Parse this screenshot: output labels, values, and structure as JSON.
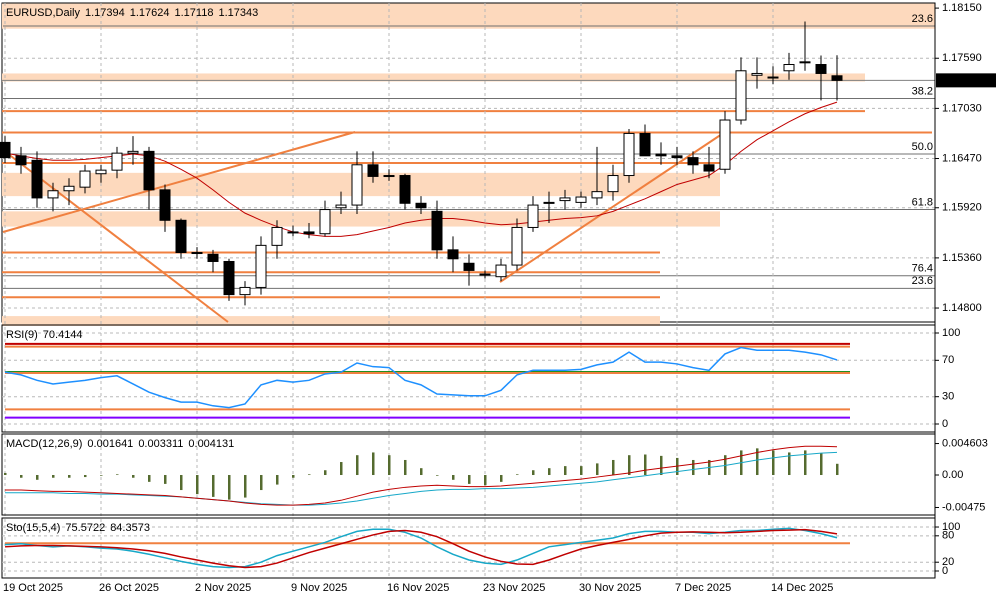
{
  "chart_data": [
    {
      "type": "candlestick",
      "title": "EURUSD,Daily",
      "categories": [
        "19 Oct 2025",
        null,
        null,
        null,
        null,
        null,
        "26 Oct 2025",
        null,
        null,
        null,
        null,
        null,
        "2 Nov 2025",
        null,
        null,
        null,
        null,
        null,
        "9 Nov 2025",
        null,
        null,
        null,
        null,
        null,
        "16 Nov 2025",
        null,
        null,
        null,
        null,
        null,
        "23 Nov 2025",
        null,
        null,
        null,
        null,
        null,
        "30 Nov 2025",
        null,
        null,
        null,
        null,
        null,
        "7 Dec 2025",
        null,
        null,
        null,
        null,
        null,
        "14 Dec 2025",
        null,
        null,
        null,
        null
      ],
      "open": [
        1.1665,
        1.165,
        1.1645,
        1.1603,
        1.1611,
        1.1615,
        1.163,
        1.1634,
        1.1653,
        1.1655,
        1.1612,
        1.1578,
        1.1542,
        1.154,
        1.1532,
        1.1495,
        1.1503,
        1.155,
        1.1565,
        1.1565,
        1.1563,
        1.1592,
        1.1595,
        1.164,
        1.1627,
        1.1628,
        1.1597,
        1.1588,
        1.1545,
        1.153,
        1.1518,
        1.1515,
        1.1528,
        1.157,
        1.1597,
        1.16,
        1.1598,
        1.1603,
        1.161,
        1.1628,
        1.1675,
        1.1652,
        1.165,
        1.1648,
        1.164,
        1.1635,
        1.169,
        1.174,
        1.1738,
        1.1745,
        1.1755,
        1.1752,
        1.17394
      ],
      "high": [
        1.1672,
        1.166,
        1.1655,
        1.162,
        1.1625,
        1.164,
        1.164,
        1.166,
        1.1672,
        1.166,
        1.1618,
        1.158,
        1.1548,
        1.1545,
        1.1535,
        1.151,
        1.156,
        1.1578,
        1.1572,
        1.1575,
        1.16,
        1.161,
        1.1655,
        1.1655,
        1.1635,
        1.163,
        1.1605,
        1.16,
        1.156,
        1.154,
        1.1522,
        1.1535,
        1.158,
        1.1605,
        1.161,
        1.1612,
        1.161,
        1.166,
        1.164,
        1.168,
        1.1685,
        1.1665,
        1.166,
        1.1655,
        1.166,
        1.17,
        1.176,
        1.176,
        1.175,
        1.1765,
        1.18,
        1.1762,
        1.17624
      ],
      "low": [
        1.1642,
        1.163,
        1.1592,
        1.1588,
        1.1595,
        1.1608,
        1.162,
        1.1625,
        1.164,
        1.159,
        1.1565,
        1.1535,
        1.1535,
        1.152,
        1.1488,
        1.1483,
        1.1495,
        1.1535,
        1.156,
        1.1558,
        1.156,
        1.1585,
        1.1585,
        1.162,
        1.1622,
        1.159,
        1.1585,
        1.1535,
        1.152,
        1.1505,
        1.1513,
        1.151,
        1.1522,
        1.1565,
        1.1575,
        1.159,
        1.1592,
        1.1595,
        1.16,
        1.162,
        1.165,
        1.164,
        1.164,
        1.163,
        1.1625,
        1.163,
        1.1685,
        1.1725,
        1.173,
        1.1735,
        1.1745,
        1.1712,
        1.17118
      ],
      "close": [
        1.1648,
        1.164,
        1.1603,
        1.1611,
        1.1616,
        1.1633,
        1.1634,
        1.1653,
        1.1655,
        1.1612,
        1.1578,
        1.1542,
        1.1541,
        1.1532,
        1.1495,
        1.1503,
        1.155,
        1.157,
        1.1565,
        1.1563,
        1.159,
        1.1595,
        1.164,
        1.1627,
        1.1628,
        1.1597,
        1.1592,
        1.1545,
        1.1535,
        1.1522,
        1.1517,
        1.1528,
        1.157,
        1.1595,
        1.1598,
        1.1603,
        1.1604,
        1.161,
        1.1628,
        1.1675,
        1.165,
        1.165,
        1.1648,
        1.164,
        1.1633,
        1.169,
        1.1745,
        1.1742,
        1.1738,
        1.1752,
        1.1755,
        1.1742,
        1.17343
      ],
      "series": [
        {
          "color": "#c00000",
          "values": [
            1.1653,
            1.165,
            1.1647,
            1.1645,
            1.1645,
            1.1646,
            1.1648,
            1.165,
            1.1652,
            1.165,
            1.1644,
            1.1635,
            1.1625,
            1.1612,
            1.1598,
            1.1586,
            1.1578,
            1.1571,
            1.1565,
            1.1562,
            1.156,
            1.156,
            1.1562,
            1.1566,
            1.157,
            1.1575,
            1.1578,
            1.158,
            1.158,
            1.1578,
            1.1575,
            1.1573,
            1.1574,
            1.1576,
            1.1578,
            1.158,
            1.1581,
            1.1583,
            1.1588,
            1.1595,
            1.1602,
            1.161,
            1.1618,
            1.1623,
            1.1628,
            1.164,
            1.1655,
            1.1668,
            1.1678,
            1.1688,
            1.1697,
            1.1704,
            1.171
          ]
        }
      ],
      "zones": [
        [
          1.1792,
          1.182
        ],
        [
          1.1733,
          1.1742
        ],
        [
          1.1605,
          1.1631
        ],
        [
          1.1571,
          1.1588
        ],
        [
          1.146,
          1.1471
        ]
      ],
      "zone_color": "#fdd9bd",
      "lines": [
        1.17,
        1.1676,
        1.1642,
        1.1542,
        1.152,
        1.1492
      ],
      "line_color": "#f08040",
      "levels": [
        {
          "label": "23.6",
          "value": 1.1795
        },
        {
          "label": "38.2",
          "value": 1.1714
        },
        {
          "label": "50.0",
          "value": 1.1652
        },
        {
          "label": "61.8",
          "value": 1.159
        },
        {
          "label": "76.4",
          "value": 1.1516
        },
        {
          "label": "23.6",
          "value": 1.1502
        }
      ],
      "ylim": [
        1.14644,
        1.18207
      ],
      "yticks": [
        {
          "value": 1.1815,
          "label": "1.18150"
        },
        {
          "value": 1.1759,
          "label": "1.17590"
        },
        {
          "value": 1.1703,
          "label": "1.17030"
        },
        {
          "value": 1.1647,
          "label": "1.16470"
        },
        {
          "value": 1.1592,
          "label": "1.15920"
        },
        {
          "value": 1.1536,
          "label": "1.15360"
        },
        {
          "value": 1.148,
          "label": "1.14800"
        }
      ],
      "grid": true
    },
    {
      "type": "line",
      "title": "RSI(9)",
      "series": [
        {
          "color": "#1e90ff",
          "values": [
            57,
            54,
            48,
            44,
            46,
            48,
            51,
            53,
            44,
            35,
            29,
            24,
            24,
            20,
            18,
            22,
            43,
            48,
            46,
            48,
            55,
            57,
            67,
            63,
            62,
            48,
            43,
            33,
            32,
            31,
            31,
            37,
            54,
            59,
            59,
            59,
            60,
            65,
            68,
            79,
            68,
            68,
            66,
            62,
            59,
            77,
            84,
            81,
            81,
            81,
            79,
            76,
            70.4144
          ]
        }
      ],
      "levels": [
        {
          "value": 88,
          "color": "#c00000"
        },
        {
          "value": 85,
          "color": "#f08040"
        },
        {
          "value": 57,
          "color": "#008000"
        },
        {
          "value": 56,
          "color": "#f08040"
        },
        {
          "value": 16,
          "color": "#f08040"
        },
        {
          "value": 7,
          "color": "#8000ff"
        }
      ],
      "ylim": [
        -8.8,
        108.8
      ],
      "yticks": [
        100,
        70,
        30,
        0
      ],
      "grid": true
    },
    {
      "type": "combo",
      "title": "MACD(12,26,9)",
      "series": [
        {
          "kind": "bar",
          "color": "#556b2f",
          "values": [
            0.0003,
            -0.0004,
            -0.0007,
            -0.0004,
            -0.0004,
            -0.0003,
            -0.0001,
            0.0001,
            -0.0004,
            -0.001,
            -0.0013,
            -0.0022,
            -0.0028,
            -0.0032,
            -0.0036,
            -0.0033,
            -0.0022,
            -0.0014,
            -0.0004,
            0.0001,
            0.0007,
            0.0019,
            0.0029,
            0.0033,
            0.0029,
            0.0022,
            0.001,
            -0.0001,
            -0.0007,
            -0.0013,
            -0.0015,
            -0.001,
            0.0001,
            0.0007,
            0.001,
            0.0013,
            0.0013,
            0.0017,
            0.0022,
            0.0029,
            0.003,
            0.0028,
            0.0025,
            0.0022,
            0.0022,
            0.0029,
            0.0036,
            0.0039,
            0.0036,
            0.0033,
            0.0036,
            0.0032,
            0.001641
          ]
        },
        {
          "kind": "line",
          "color": "#17a8c8",
          "values": [
            -0.0026,
            -0.0026,
            -0.0026,
            -0.0026,
            -0.0027,
            -0.0027,
            -0.0028,
            -0.0028,
            -0.0029,
            -0.003,
            -0.0031,
            -0.0032,
            -0.0034,
            -0.0036,
            -0.0038,
            -0.004,
            -0.0042,
            -0.0043,
            -0.0044,
            -0.0044,
            -0.0043,
            -0.0041,
            -0.0038,
            -0.0034,
            -0.003,
            -0.0027,
            -0.0024,
            -0.0022,
            -0.0021,
            -0.0021,
            -0.002,
            -0.002,
            -0.0019,
            -0.0018,
            -0.0016,
            -0.0014,
            -0.0012,
            -0.001,
            -0.0007,
            -0.0004,
            -0.0001,
            0.0002,
            0.0005,
            0.0008,
            0.0011,
            0.0014,
            0.0018,
            0.0022,
            0.0025,
            0.0028,
            0.003,
            0.0032,
            0.003311
          ]
        },
        {
          "kind": "line",
          "color": "#c00000",
          "values": [
            -0.0022,
            -0.0022,
            -0.0023,
            -0.0024,
            -0.0024,
            -0.0025,
            -0.0026,
            -0.0027,
            -0.0028,
            -0.0029,
            -0.003,
            -0.0032,
            -0.0034,
            -0.0036,
            -0.0038,
            -0.0041,
            -0.0043,
            -0.0044,
            -0.0044,
            -0.0043,
            -0.0041,
            -0.0037,
            -0.0031,
            -0.0025,
            -0.0021,
            -0.0018,
            -0.0016,
            -0.0015,
            -0.0016,
            -0.0017,
            -0.0017,
            -0.0016,
            -0.0014,
            -0.0012,
            -0.001,
            -0.0008,
            -0.0006,
            -0.0003,
            0,
            0.0003,
            0.0007,
            0.001,
            0.0013,
            0.0016,
            0.0019,
            0.0023,
            0.0028,
            0.0033,
            0.0037,
            0.004,
            0.0042,
            0.0042,
            0.004131
          ]
        }
      ],
      "ylim": [
        -0.00585,
        0.006
      ],
      "yticks": [
        0.004603,
        {
          "value": 0,
          "label": "0.00"
        },
        -0.00475
      ],
      "grid": false
    },
    {
      "type": "line",
      "title": "Sto(15,5,4)",
      "series": [
        {
          "color": "#17a8c8",
          "values": [
            60,
            62,
            58,
            55,
            57,
            55,
            52,
            50,
            45,
            38,
            30,
            22,
            15,
            10,
            8,
            10,
            20,
            35,
            45,
            55,
            65,
            78,
            90,
            95,
            95,
            88,
            75,
            55,
            38,
            25,
            18,
            15,
            25,
            40,
            55,
            60,
            65,
            70,
            75,
            85,
            90,
            90,
            88,
            88,
            85,
            88,
            92,
            92,
            95,
            97,
            92,
            85,
            75.5722
          ]
        },
        {
          "color": "#c00000",
          "values": [
            55,
            57,
            58,
            58,
            57,
            56,
            55,
            53,
            50,
            46,
            40,
            32,
            25,
            18,
            12,
            8,
            10,
            18,
            30,
            42,
            52,
            62,
            72,
            82,
            90,
            92,
            88,
            78,
            62,
            45,
            32,
            22,
            16,
            15,
            25,
            38,
            50,
            58,
            65,
            72,
            80,
            86,
            88,
            89,
            88,
            87,
            88,
            90,
            92,
            93,
            94,
            90,
            84.3573
          ]
        }
      ],
      "levels": [
        {
          "value": 63,
          "color": "#f08040"
        }
      ],
      "ylim": [
        -15.9,
        120.5
      ],
      "yticks": [
        100,
        80,
        20,
        0
      ],
      "grid": true
    }
  ]
}
